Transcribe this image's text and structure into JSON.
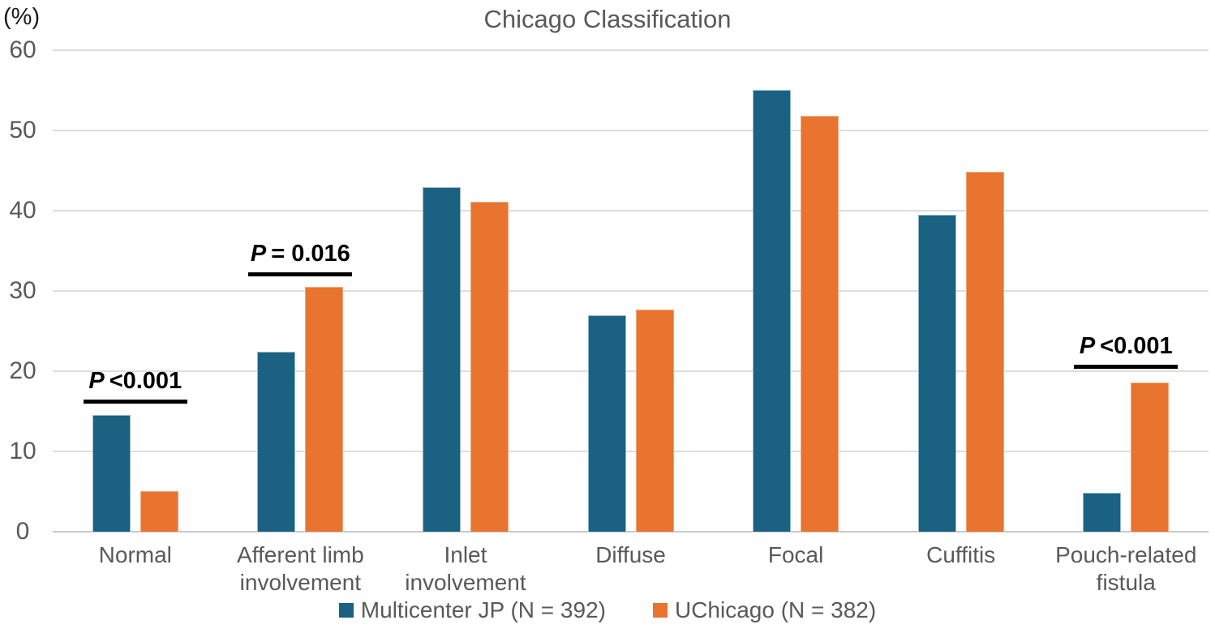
{
  "ylabel": "(%)",
  "chart_data": {
    "type": "bar",
    "title": "Chicago Classification",
    "ylabel": "(%)",
    "xlabel": "",
    "ylim": [
      0,
      60
    ],
    "yticks": [
      0,
      10,
      20,
      30,
      40,
      50,
      60
    ],
    "grid": true,
    "legend_position": "bottom-center",
    "categories": [
      {
        "lines": [
          "Normal"
        ]
      },
      {
        "lines": [
          "Afferent limb",
          "involvement"
        ]
      },
      {
        "lines": [
          "Inlet",
          "involvement"
        ]
      },
      {
        "lines": [
          "Diffuse"
        ]
      },
      {
        "lines": [
          "Focal"
        ]
      },
      {
        "lines": [
          "Cuffitis"
        ]
      },
      {
        "lines": [
          "Pouch-related",
          "fistula"
        ]
      }
    ],
    "series": [
      {
        "name": "Multicenter JP (N = 392)",
        "color": "#1A6182",
        "values": [
          14.5,
          22.4,
          42.9,
          27.0,
          55.1,
          39.5,
          4.9
        ]
      },
      {
        "name": "UChicago (N = 382)",
        "color": "#E8742F",
        "values": [
          5.1,
          30.5,
          41.1,
          27.7,
          51.8,
          44.8,
          18.6
        ]
      }
    ],
    "annotations": [
      {
        "category_index": 0,
        "p_label": "P",
        "value_text": "<0.001",
        "line_value": 16.0
      },
      {
        "category_index": 1,
        "p_label": "P",
        "value_text": "= 0.016",
        "line_value": 31.8
      },
      {
        "category_index": 6,
        "p_label": "P",
        "value_text": "<0.001",
        "line_value": 20.3
      }
    ]
  }
}
